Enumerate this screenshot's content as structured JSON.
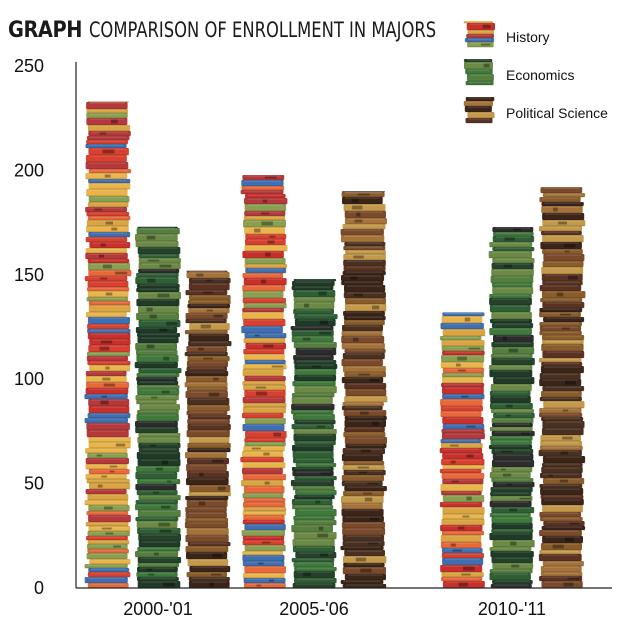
{
  "header": {
    "title_prefix": "GRAPH",
    "title": "COMPARISON OF ENROLLMENT IN MAJORS"
  },
  "colors": {
    "History": [
      "#d9402f",
      "#e8683a",
      "#c9302c",
      "#e9b44a",
      "#3f6fb0",
      "#b5383a",
      "#d9a441",
      "#8aa050"
    ],
    "Economics": [
      "#2f5f35",
      "#3f7a3c",
      "#24412a",
      "#557f3f",
      "#1f3a26",
      "#6a8a45",
      "#2c2c2c"
    ],
    "Political Science": [
      "#5a3222",
      "#7a4a2a",
      "#a5733a",
      "#3b2418",
      "#8a5c2a",
      "#c49a4a",
      "#4a3020"
    ]
  },
  "chart_data": {
    "type": "bar",
    "title": "COMPARISON OF ENROLLMENT IN MAJORS",
    "xlabel": "",
    "ylabel": "",
    "categories": [
      "2000-'01",
      "2005-'06",
      "2010-'11"
    ],
    "ylim": [
      0,
      250
    ],
    "yticks": [
      0,
      50,
      100,
      150,
      200,
      250
    ],
    "grid": false,
    "legend_position": "top-right",
    "series": [
      {
        "name": "History",
        "values": [
          233,
          198,
          132
        ]
      },
      {
        "name": "Economics",
        "values": [
          173,
          148,
          173
        ]
      },
      {
        "name": "Political Science",
        "values": [
          152,
          190,
          192
        ]
      }
    ]
  }
}
